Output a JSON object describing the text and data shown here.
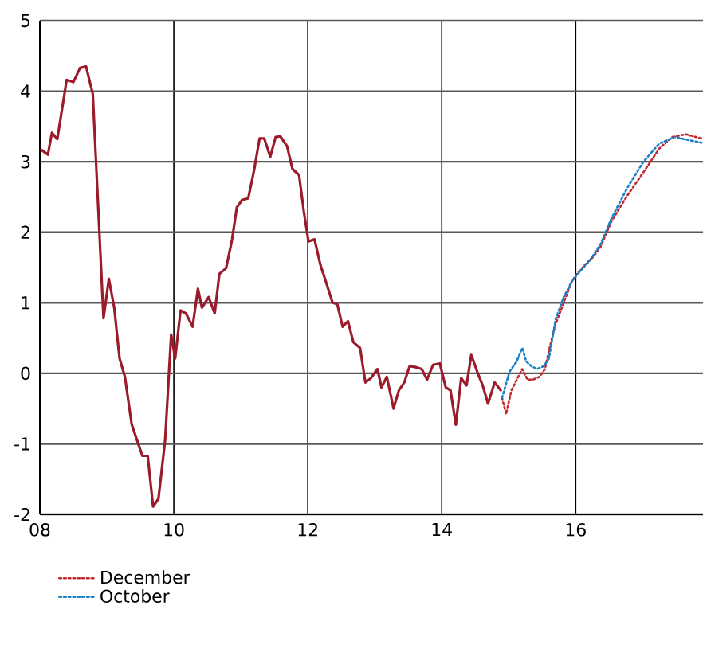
{
  "chart_data": {
    "type": "line",
    "xlim": [
      2008,
      2017.9
    ],
    "ylim": [
      -2,
      5
    ],
    "xticks": [
      {
        "value": 2008,
        "label": "08"
      },
      {
        "value": 2010,
        "label": "10"
      },
      {
        "value": 2012,
        "label": "12"
      },
      {
        "value": 2014,
        "label": "14"
      },
      {
        "value": 2016,
        "label": "16"
      }
    ],
    "yticks": [
      -2,
      -1,
      0,
      1,
      2,
      3,
      4,
      5
    ],
    "grid": true,
    "legend": "bottom",
    "marker": "none",
    "series": [
      {
        "color": "#9b1b2a",
        "line_style": "solid",
        "x": [
          2008.02,
          2008.12,
          2008.18,
          2008.26,
          2008.4,
          2008.5,
          2008.6,
          2008.69,
          2008.79,
          2008.95,
          2009.03,
          2009.11,
          2009.19,
          2009.27,
          2009.37,
          2009.53,
          2009.61,
          2009.69,
          2009.77,
          2009.87,
          2009.96,
          2010.02,
          2010.1,
          2010.18,
          2010.28,
          2010.36,
          2010.42,
          2010.52,
          2010.61,
          2010.68,
          2010.78,
          2010.87,
          2010.94,
          2011.02,
          2011.11,
          2011.2,
          2011.28,
          2011.35,
          2011.44,
          2011.52,
          2011.59,
          2011.69,
          2011.77,
          2011.87,
          2011.94,
          2012.01,
          2012.1,
          2012.19,
          2012.27,
          2012.37,
          2012.44,
          2012.52,
          2012.6,
          2012.68,
          2012.78,
          2012.86,
          2012.94,
          2013.04,
          2013.1,
          2013.18,
          2013.28,
          2013.36,
          2013.44,
          2013.52,
          2013.6,
          2013.7,
          2013.78,
          2013.87,
          2013.97,
          2014.06,
          2014.13,
          2014.21,
          2014.29,
          2014.37,
          2014.44,
          2014.53,
          2014.61,
          2014.69,
          2014.79,
          2014.88
        ],
        "values": [
          3.17,
          3.1,
          3.41,
          3.32,
          4.16,
          4.13,
          4.33,
          4.35,
          3.96,
          0.78,
          1.34,
          0.93,
          0.21,
          -0.05,
          -0.72,
          -1.17,
          -1.17,
          -1.89,
          -1.78,
          -0.95,
          0.55,
          0.21,
          0.89,
          0.85,
          0.66,
          1.2,
          0.93,
          1.08,
          0.85,
          1.41,
          1.49,
          1.9,
          2.35,
          2.46,
          2.48,
          2.89,
          3.33,
          3.33,
          3.07,
          3.35,
          3.36,
          3.22,
          2.9,
          2.81,
          2.3,
          1.87,
          1.9,
          1.53,
          1.3,
          1.0,
          0.98,
          0.66,
          0.74,
          0.44,
          0.36,
          -0.13,
          -0.07,
          0.06,
          -0.2,
          -0.05,
          -0.5,
          -0.24,
          -0.13,
          0.1,
          0.09,
          0.06,
          -0.09,
          0.12,
          0.14,
          -0.2,
          -0.24,
          -0.73,
          -0.07,
          -0.17,
          0.26,
          0.02,
          -0.17,
          -0.43,
          -0.13,
          -0.24
        ]
      },
      {
        "name": "December",
        "color": "#c0282d",
        "line_style": "dotted",
        "x": [
          2014.9,
          2014.96,
          2015.04,
          2015.12,
          2015.2,
          2015.28,
          2015.36,
          2015.46,
          2015.54,
          2015.62,
          2015.7,
          2015.82,
          2015.94,
          2016.02,
          2016.13,
          2016.25,
          2016.37,
          2016.53,
          2016.77,
          2017.01,
          2017.25,
          2017.44,
          2017.64,
          2017.88
        ],
        "values": [
          -0.35,
          -0.58,
          -0.24,
          -0.09,
          0.06,
          -0.09,
          -0.09,
          -0.05,
          0.06,
          0.4,
          0.7,
          1.0,
          1.3,
          1.41,
          1.53,
          1.64,
          1.79,
          2.15,
          2.52,
          2.85,
          3.19,
          3.35,
          3.39,
          3.33
        ]
      },
      {
        "name": "October",
        "color": "#1a80c8",
        "line_style": "dotted",
        "x": [
          2014.9,
          2015.01,
          2015.12,
          2015.2,
          2015.26,
          2015.34,
          2015.42,
          2015.52,
          2015.6,
          2015.7,
          2015.82,
          2015.94,
          2016.06,
          2016.21,
          2016.37,
          2016.53,
          2016.77,
          2017.01,
          2017.25,
          2017.48,
          2017.72,
          2017.88
        ],
        "values": [
          -0.35,
          0.02,
          0.17,
          0.36,
          0.17,
          0.1,
          0.06,
          0.1,
          0.21,
          0.77,
          1.08,
          1.3,
          1.44,
          1.6,
          1.83,
          2.19,
          2.63,
          3.0,
          3.26,
          3.35,
          3.3,
          3.27
        ]
      }
    ]
  }
}
